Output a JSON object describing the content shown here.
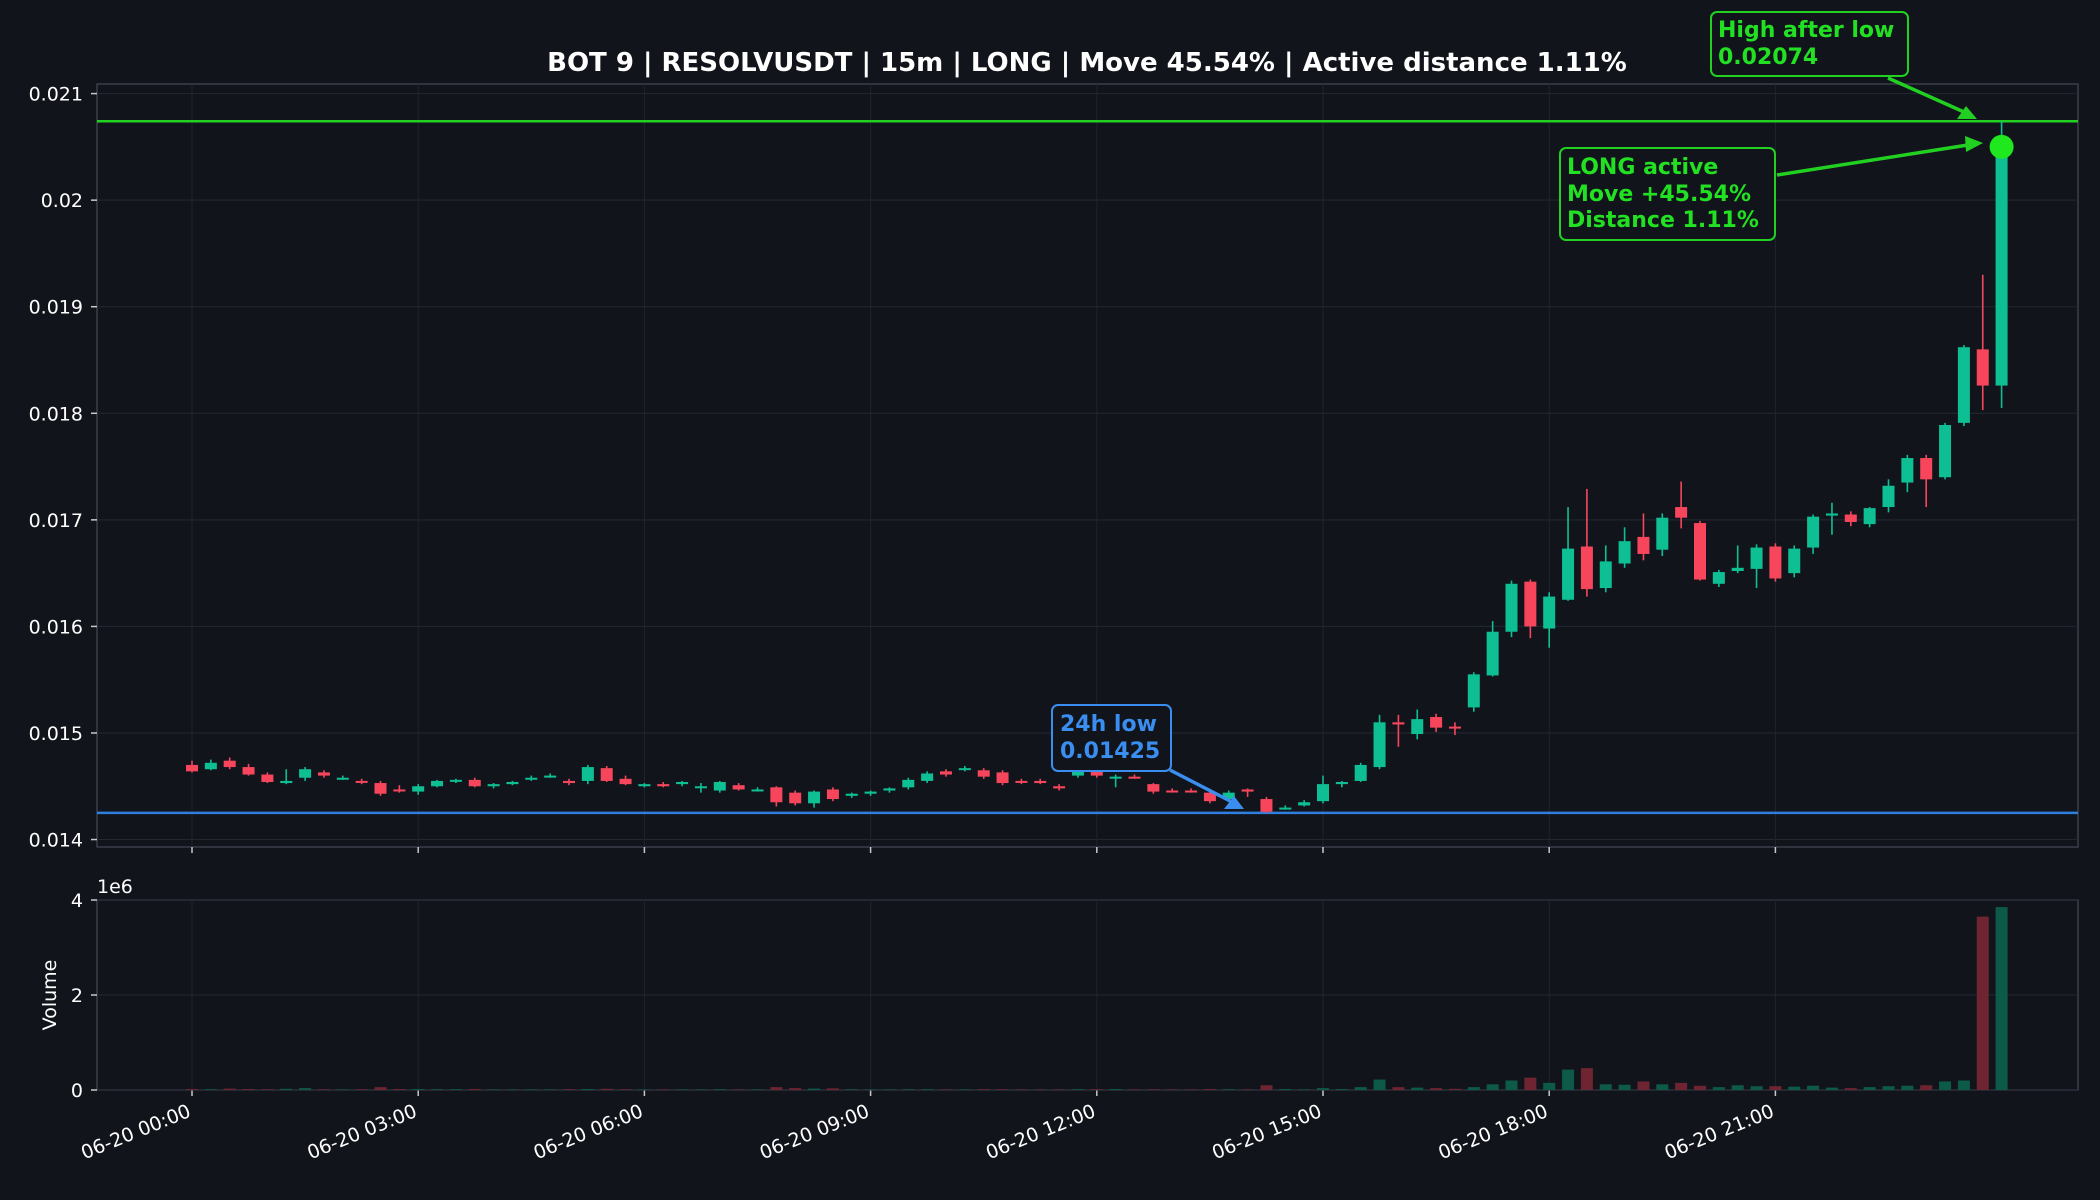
{
  "chart_data": {
    "type": "candlestick",
    "title": "BOT 9 | RESOLVUSDT | 15m | LONG | Move 45.54% | Active distance 1.11%",
    "interval_minutes": 15,
    "first_candle": "06-20 00:00",
    "price_axis": {
      "ylim": [
        0.01393,
        0.02109
      ],
      "ticks": [
        "0.014",
        "0.015",
        "0.016",
        "0.017",
        "0.018",
        "0.019",
        "0.02",
        "0.021"
      ]
    },
    "volume_axis": {
      "ylabel": "Volume",
      "scale_label": "1e6",
      "ylim": [
        0,
        4000000
      ],
      "ticks": [
        "0",
        "2",
        "4"
      ]
    },
    "x_ticks": [
      "06-20 00:00",
      "06-20 03:00",
      "06-20 06:00",
      "06-20 09:00",
      "06-20 12:00",
      "06-20 15:00",
      "06-20 18:00",
      "06-20 21:00"
    ],
    "grid": true,
    "colors": {
      "up": "#0fbf94",
      "down": "#f7465c",
      "low_line": "#2f7fe0",
      "high_line": "#22d022",
      "marker": "#1fe81f",
      "background": "#11141b"
    },
    "reference_lines": {
      "low": 0.01425,
      "high": 0.02074
    },
    "candles": [
      [
        0.0147,
        0.01474,
        0.01463,
        0.01464,
        20000
      ],
      [
        0.01466,
        0.01475,
        0.01465,
        0.01472,
        15000
      ],
      [
        0.01474,
        0.01477,
        0.01466,
        0.01468,
        30000
      ],
      [
        0.01468,
        0.01471,
        0.0146,
        0.01461,
        20000
      ],
      [
        0.01461,
        0.01463,
        0.01453,
        0.01454,
        15000
      ],
      [
        0.01453,
        0.01466,
        0.01452,
        0.01455,
        25000
      ],
      [
        0.01458,
        0.01468,
        0.01455,
        0.01466,
        40000
      ],
      [
        0.01463,
        0.01465,
        0.01458,
        0.0146,
        15000
      ],
      [
        0.01458,
        0.0146,
        0.01456,
        0.01458,
        10000
      ],
      [
        0.01455,
        0.01457,
        0.01452,
        0.01454,
        15000
      ],
      [
        0.01453,
        0.01455,
        0.01441,
        0.01443,
        60000
      ],
      [
        0.01447,
        0.01451,
        0.01444,
        0.01446,
        20000
      ],
      [
        0.01445,
        0.01452,
        0.01442,
        0.0145,
        20000
      ],
      [
        0.0145,
        0.01456,
        0.01449,
        0.01455,
        15000
      ],
      [
        0.01455,
        0.01457,
        0.01453,
        0.01456,
        15000
      ],
      [
        0.01456,
        0.01458,
        0.01449,
        0.0145,
        20000
      ],
      [
        0.0145,
        0.01453,
        0.01448,
        0.01452,
        10000
      ],
      [
        0.01452,
        0.01455,
        0.01451,
        0.01454,
        10000
      ],
      [
        0.01457,
        0.0146,
        0.01455,
        0.01458,
        10000
      ],
      [
        0.0146,
        0.01462,
        0.01458,
        0.0146,
        10000
      ],
      [
        0.01455,
        0.01457,
        0.01451,
        0.01453,
        15000
      ],
      [
        0.01455,
        0.0147,
        0.01452,
        0.01468,
        20000
      ],
      [
        0.01467,
        0.01469,
        0.01454,
        0.01455,
        25000
      ],
      [
        0.01457,
        0.0146,
        0.01451,
        0.01452,
        15000
      ],
      [
        0.0145,
        0.01453,
        0.01449,
        0.01452,
        10000
      ],
      [
        0.01452,
        0.01454,
        0.01449,
        0.0145,
        10000
      ],
      [
        0.01452,
        0.01455,
        0.0145,
        0.01454,
        10000
      ],
      [
        0.01449,
        0.01453,
        0.01444,
        0.0145,
        10000
      ],
      [
        0.01446,
        0.01455,
        0.01444,
        0.01454,
        15000
      ],
      [
        0.01451,
        0.01453,
        0.01446,
        0.01447,
        10000
      ],
      [
        0.01447,
        0.01449,
        0.01445,
        0.01447,
        10000
      ],
      [
        0.01449,
        0.0145,
        0.01431,
        0.01435,
        60000
      ],
      [
        0.01444,
        0.01446,
        0.01432,
        0.01434,
        40000
      ],
      [
        0.01434,
        0.01446,
        0.0143,
        0.01445,
        30000
      ],
      [
        0.01447,
        0.01449,
        0.01436,
        0.01438,
        35000
      ],
      [
        0.01441,
        0.01444,
        0.01439,
        0.01443,
        15000
      ],
      [
        0.01443,
        0.01446,
        0.01441,
        0.01445,
        10000
      ],
      [
        0.01446,
        0.01449,
        0.01444,
        0.01448,
        10000
      ],
      [
        0.01449,
        0.01458,
        0.01447,
        0.01456,
        15000
      ],
      [
        0.01455,
        0.01464,
        0.01453,
        0.01462,
        15000
      ],
      [
        0.01464,
        0.01466,
        0.01459,
        0.01461,
        10000
      ],
      [
        0.01466,
        0.01469,
        0.01464,
        0.01467,
        10000
      ],
      [
        0.01465,
        0.01467,
        0.01457,
        0.01459,
        15000
      ],
      [
        0.01463,
        0.01465,
        0.01451,
        0.01453,
        15000
      ],
      [
        0.01455,
        0.01457,
        0.01452,
        0.01454,
        10000
      ],
      [
        0.01455,
        0.01457,
        0.01452,
        0.01453,
        10000
      ],
      [
        0.0145,
        0.01452,
        0.01446,
        0.01448,
        10000
      ],
      [
        0.0146,
        0.01468,
        0.01458,
        0.01466,
        15000
      ],
      [
        0.01465,
        0.01467,
        0.01458,
        0.0146,
        15000
      ],
      [
        0.01459,
        0.01461,
        0.01449,
        0.01459,
        20000
      ],
      [
        0.01459,
        0.01461,
        0.01457,
        0.01458,
        10000
      ],
      [
        0.01452,
        0.01453,
        0.01443,
        0.01445,
        15000
      ],
      [
        0.01446,
        0.01448,
        0.01444,
        0.01445,
        10000
      ],
      [
        0.01446,
        0.01448,
        0.01444,
        0.01445,
        10000
      ],
      [
        0.01444,
        0.01446,
        0.01434,
        0.01436,
        20000
      ],
      [
        0.01438,
        0.01446,
        0.01436,
        0.01444,
        15000
      ],
      [
        0.01447,
        0.01448,
        0.0144,
        0.01445,
        10000
      ],
      [
        0.01438,
        0.0144,
        0.01425,
        0.01426,
        100000
      ],
      [
        0.0143,
        0.01432,
        0.01428,
        0.0143,
        20000
      ],
      [
        0.01432,
        0.01437,
        0.01431,
        0.01435,
        10000
      ],
      [
        0.01436,
        0.0146,
        0.01434,
        0.01452,
        40000
      ],
      [
        0.01452,
        0.01455,
        0.01449,
        0.01454,
        20000
      ],
      [
        0.01455,
        0.01472,
        0.01454,
        0.0147,
        60000
      ],
      [
        0.01468,
        0.01517,
        0.01466,
        0.0151,
        220000
      ],
      [
        0.0151,
        0.01517,
        0.01487,
        0.01508,
        60000
      ],
      [
        0.01499,
        0.01522,
        0.01494,
        0.01513,
        50000
      ],
      [
        0.01515,
        0.01518,
        0.01501,
        0.01505,
        40000
      ],
      [
        0.01506,
        0.0151,
        0.01498,
        0.01505,
        25000
      ],
      [
        0.01524,
        0.01557,
        0.0152,
        0.01555,
        60000
      ],
      [
        0.01554,
        0.01605,
        0.01553,
        0.01595,
        120000
      ],
      [
        0.01595,
        0.01643,
        0.0159,
        0.0164,
        200000
      ],
      [
        0.01642,
        0.01644,
        0.01589,
        0.016,
        260000
      ],
      [
        0.01598,
        0.01632,
        0.0158,
        0.01628,
        150000
      ],
      [
        0.01625,
        0.01712,
        0.01624,
        0.01673,
        430000
      ],
      [
        0.01675,
        0.01729,
        0.01628,
        0.01635,
        460000
      ],
      [
        0.01636,
        0.01676,
        0.01632,
        0.01661,
        120000
      ],
      [
        0.01659,
        0.01693,
        0.01655,
        0.0168,
        110000
      ],
      [
        0.01684,
        0.01706,
        0.01662,
        0.01668,
        180000
      ],
      [
        0.01672,
        0.01706,
        0.01666,
        0.01702,
        120000
      ],
      [
        0.01712,
        0.01736,
        0.01692,
        0.01702,
        150000
      ],
      [
        0.01697,
        0.01699,
        0.01643,
        0.01644,
        90000
      ],
      [
        0.0164,
        0.01653,
        0.01637,
        0.01651,
        60000
      ],
      [
        0.01652,
        0.01676,
        0.0165,
        0.01655,
        100000
      ],
      [
        0.01654,
        0.01677,
        0.01636,
        0.01674,
        80000
      ],
      [
        0.01675,
        0.01678,
        0.01642,
        0.01645,
        80000
      ],
      [
        0.0165,
        0.01676,
        0.01646,
        0.01673,
        70000
      ],
      [
        0.01674,
        0.01705,
        0.01668,
        0.01703,
        90000
      ],
      [
        0.01704,
        0.01716,
        0.01686,
        0.01706,
        50000
      ],
      [
        0.01705,
        0.01708,
        0.01694,
        0.01698,
        40000
      ],
      [
        0.01696,
        0.01712,
        0.01693,
        0.01711,
        60000
      ],
      [
        0.01712,
        0.01738,
        0.01707,
        0.01732,
        80000
      ],
      [
        0.01735,
        0.01761,
        0.01726,
        0.01758,
        90000
      ],
      [
        0.01758,
        0.01761,
        0.01712,
        0.01738,
        100000
      ],
      [
        0.0174,
        0.01791,
        0.01738,
        0.01789,
        180000
      ],
      [
        0.01791,
        0.01864,
        0.01788,
        0.01862,
        200000
      ],
      [
        0.0186,
        0.0193,
        0.01803,
        0.01826,
        3650000
      ],
      [
        0.01826,
        0.02074,
        0.01805,
        0.0205,
        3850000
      ]
    ],
    "annotations": {
      "low": [
        "24h low",
        "0.01425"
      ],
      "high": [
        "High after low",
        "0.02074"
      ],
      "active": [
        "LONG active",
        "Move +45.54%",
        "Distance 1.11%"
      ]
    }
  }
}
